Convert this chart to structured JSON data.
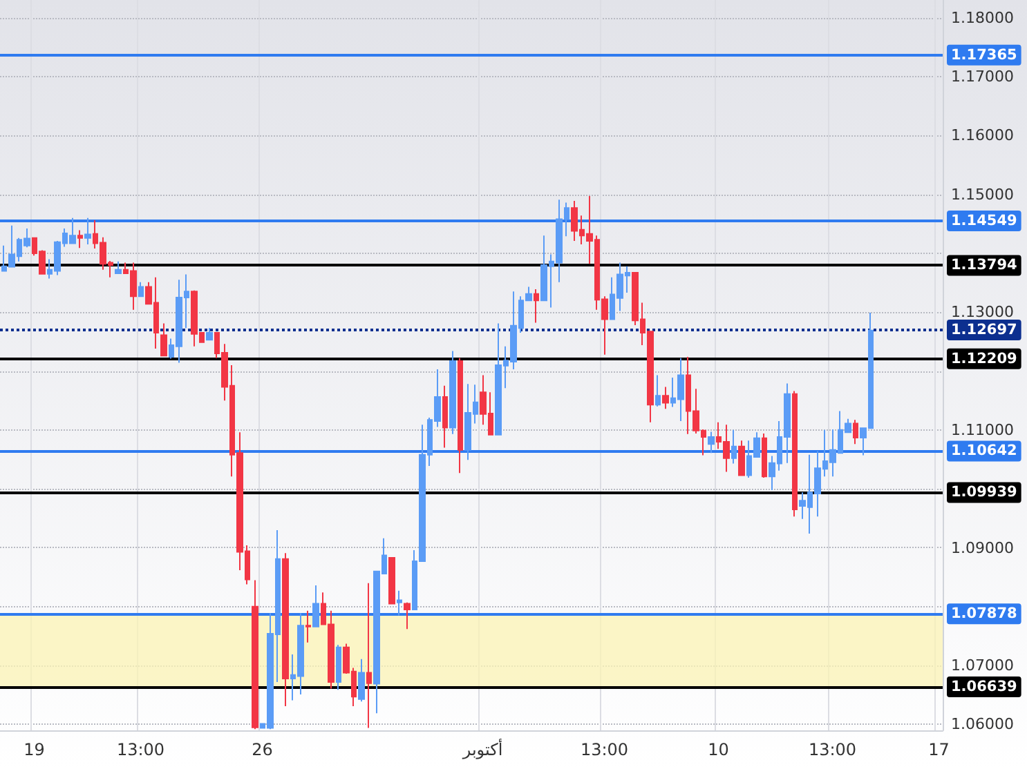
{
  "chart_data": {
    "type": "candlestick",
    "categories": [
      null,
      null,
      null,
      null,
      "19",
      null,
      null,
      null,
      null,
      null,
      null,
      null,
      null,
      null,
      null,
      null,
      null,
      null,
      "13:00",
      null,
      null,
      null,
      null,
      null,
      null,
      null,
      null,
      null,
      null,
      null,
      null,
      null,
      null,
      null,
      "26",
      null,
      null,
      null,
      null,
      null,
      null,
      null,
      null,
      null,
      null,
      null,
      null,
      null,
      null,
      null,
      null,
      null,
      null,
      null,
      null,
      null,
      null,
      null,
      null,
      null,
      null,
      null,
      null,
      "أكتوبر",
      null,
      null,
      null,
      null,
      null,
      null,
      null,
      null,
      null,
      null,
      null,
      null,
      null,
      null,
      null,
      "13:00",
      null,
      null,
      null,
      null,
      null,
      null,
      null,
      null,
      null,
      null,
      null,
      null,
      null,
      null,
      "10",
      null,
      null,
      null,
      null,
      null,
      null,
      null,
      null,
      null,
      null,
      null,
      null,
      null,
      null,
      "13:00",
      null,
      null,
      null,
      null,
      null,
      null,
      null,
      null,
      null,
      null,
      null,
      null,
      null,
      "17"
    ],
    "ohlc": [
      [
        1.137,
        1.1413,
        1.137,
        1.1378
      ],
      [
        1.1377,
        1.1447,
        1.1377,
        1.1398
      ],
      [
        1.1395,
        1.1426,
        1.1386,
        1.1423
      ],
      [
        1.1413,
        1.1442,
        1.141,
        1.1425
      ],
      [
        1.1426,
        1.1427,
        1.1396,
        1.14
      ],
      [
        1.1403,
        1.1405,
        1.1365,
        1.1365
      ],
      [
        1.1365,
        1.139,
        1.1357,
        1.1372
      ],
      [
        1.137,
        1.1421,
        1.1363,
        1.1419
      ],
      [
        1.1417,
        1.1442,
        1.1411,
        1.1434
      ],
      [
        1.1417,
        1.146,
        1.1417,
        1.143
      ],
      [
        1.143,
        1.1439,
        1.1409,
        1.1426
      ],
      [
        1.1426,
        1.146,
        1.1415,
        1.1432
      ],
      [
        1.1433,
        1.1456,
        1.1408,
        1.1417
      ],
      [
        1.1418,
        1.1427,
        1.1372,
        1.1382
      ],
      [
        1.1384,
        1.1387,
        1.1359,
        1.138
      ],
      [
        1.1366,
        1.1386,
        1.1366,
        1.1372
      ],
      [
        1.1372,
        1.1384,
        1.1366,
        1.1366
      ],
      [
        1.137,
        1.1384,
        1.1304,
        1.1327
      ],
      [
        1.1327,
        1.1351,
        1.1327,
        1.1343
      ],
      [
        1.1343,
        1.1351,
        1.1314,
        1.1314
      ],
      [
        1.1316,
        1.1359,
        1.1238,
        1.1265
      ],
      [
        1.1261,
        1.1281,
        1.1226,
        1.1226
      ],
      [
        1.1224,
        1.1255,
        1.1221,
        1.1244
      ],
      [
        1.1242,
        1.1355,
        1.1214,
        1.1325
      ],
      [
        1.1325,
        1.1364,
        1.1273,
        1.1335
      ],
      [
        1.1335,
        1.1337,
        1.1242,
        1.1263
      ],
      [
        1.1265,
        1.1265,
        1.1249,
        1.1249
      ],
      [
        1.1253,
        1.1273,
        1.1252,
        1.1265
      ],
      [
        1.1265,
        1.1265,
        1.1222,
        1.123
      ],
      [
        1.1231,
        1.1246,
        1.115,
        1.1173
      ],
      [
        1.1175,
        1.121,
        1.1021,
        1.1058
      ],
      [
        1.1061,
        1.1096,
        1.0862,
        1.0893
      ],
      [
        1.0894,
        1.0904,
        1.0838,
        1.0846
      ],
      [
        1.08,
        1.0845,
        1.0592,
        1.0595
      ],
      [
        1.0594,
        1.0602,
        1.0594,
        1.0601
      ],
      [
        1.0594,
        1.0789,
        1.0592,
        1.0754
      ],
      [
        1.0753,
        1.093,
        1.0672,
        1.0881
      ],
      [
        1.0881,
        1.0891,
        1.0631,
        1.0678
      ],
      [
        1.0678,
        1.0719,
        1.0641,
        1.0684
      ],
      [
        1.0682,
        1.0789,
        1.0651,
        1.0768
      ],
      [
        1.0768,
        1.0793,
        1.0739,
        1.0766
      ],
      [
        1.0766,
        1.0836,
        1.0766,
        1.0805
      ],
      [
        1.0805,
        1.0824,
        1.077,
        1.077
      ],
      [
        1.077,
        1.0793,
        1.0661,
        1.0672
      ],
      [
        1.0672,
        1.0735,
        1.0659,
        1.0731
      ],
      [
        1.0731,
        1.0737,
        1.0686,
        1.0688
      ],
      [
        1.069,
        1.0696,
        1.0631,
        1.0647
      ],
      [
        1.0643,
        1.0711,
        1.0639,
        1.0688
      ],
      [
        1.0688,
        1.084,
        1.0594,
        1.067
      ],
      [
        1.0669,
        1.086,
        1.0619,
        1.086
      ],
      [
        1.0856,
        1.0916,
        1.0856,
        1.0887
      ],
      [
        1.0883,
        1.0884,
        1.0805,
        1.0805
      ],
      [
        1.0807,
        1.0827,
        1.0785,
        1.0811
      ],
      [
        1.0805,
        1.0807,
        1.0762,
        1.0795
      ],
      [
        1.0795,
        1.0896,
        1.0795,
        1.0877
      ],
      [
        1.0877,
        1.1109,
        1.0877,
        1.1058
      ],
      [
        1.1058,
        1.1121,
        1.1039,
        1.1117
      ],
      [
        1.1115,
        1.1203,
        1.1105,
        1.1156
      ],
      [
        1.1156,
        1.1175,
        1.107,
        1.1104
      ],
      [
        1.1104,
        1.1234,
        1.1093,
        1.1217
      ],
      [
        1.1217,
        1.1222,
        1.1027,
        1.1066
      ],
      [
        1.1066,
        1.1178,
        1.1049,
        1.1129
      ],
      [
        1.1127,
        1.1177,
        1.1111,
        1.1147
      ],
      [
        1.1164,
        1.1193,
        1.1109,
        1.1127
      ],
      [
        1.1128,
        1.1164,
        1.1092,
        1.1092
      ],
      [
        1.1092,
        1.1281,
        1.1092,
        1.121
      ],
      [
        1.1209,
        1.1242,
        1.1171,
        1.1218
      ],
      [
        1.1216,
        1.1335,
        1.1203,
        1.1277
      ],
      [
        1.1273,
        1.1327,
        1.1265,
        1.132
      ],
      [
        1.132,
        1.1343,
        1.132,
        1.1331
      ],
      [
        1.1331,
        1.1339,
        1.1282,
        1.132
      ],
      [
        1.132,
        1.143,
        1.132,
        1.138
      ],
      [
        1.1378,
        1.1398,
        1.1308,
        1.1386
      ],
      [
        1.1384,
        1.1491,
        1.1351,
        1.1458
      ],
      [
        1.1458,
        1.1486,
        1.1429,
        1.1477
      ],
      [
        1.1477,
        1.1489,
        1.1421,
        1.1438
      ],
      [
        1.144,
        1.1464,
        1.1415,
        1.143
      ],
      [
        1.1433,
        1.1497,
        1.1382,
        1.1421
      ],
      [
        1.1423,
        1.143,
        1.1304,
        1.1321
      ],
      [
        1.1322,
        1.1327,
        1.1228,
        1.1288
      ],
      [
        1.1288,
        1.1359,
        1.1288,
        1.133
      ],
      [
        1.1324,
        1.1384,
        1.1302,
        1.1364
      ],
      [
        1.1362,
        1.1378,
        1.1333,
        1.1367
      ],
      [
        1.1367,
        1.1367,
        1.1278,
        1.1286
      ],
      [
        1.1288,
        1.1316,
        1.1244,
        1.1265
      ],
      [
        1.1267,
        1.1267,
        1.1113,
        1.1143
      ],
      [
        1.1143,
        1.1193,
        1.114,
        1.1158
      ],
      [
        1.1158,
        1.1173,
        1.1136,
        1.1146
      ],
      [
        1.1146,
        1.1189,
        1.1139,
        1.1154
      ],
      [
        1.1152,
        1.1222,
        1.1115,
        1.1193
      ],
      [
        1.1193,
        1.1224,
        1.1093,
        1.1132
      ],
      [
        1.1132,
        1.117,
        1.1094,
        1.1099
      ],
      [
        1.1099,
        1.1101,
        1.1057,
        1.1088
      ],
      [
        1.1076,
        1.1097,
        1.1061,
        1.1088
      ],
      [
        1.1088,
        1.1113,
        1.1068,
        1.108
      ],
      [
        1.108,
        1.1109,
        1.1029,
        1.1052
      ],
      [
        1.1052,
        1.11,
        1.1043,
        1.1072
      ],
      [
        1.1072,
        1.1082,
        1.1023,
        1.1023
      ],
      [
        1.1023,
        1.1082,
        1.1019,
        1.1056
      ],
      [
        1.1054,
        1.1096,
        1.1054,
        1.1086
      ],
      [
        1.1086,
        1.1094,
        1.1019,
        1.1021
      ],
      [
        1.1021,
        1.1056,
        1.0998,
        1.1044
      ],
      [
        1.1043,
        1.1115,
        1.1031,
        1.1088
      ],
      [
        1.1088,
        1.1179,
        1.1044,
        1.1161
      ],
      [
        1.1161,
        1.1166,
        1.0953,
        1.0965
      ],
      [
        1.0971,
        1.0994,
        1.0949,
        1.098
      ],
      [
        1.0969,
        1.1058,
        1.0924,
        1.0994
      ],
      [
        1.0992,
        1.1064,
        1.0953,
        1.1035
      ],
      [
        1.1034,
        1.11,
        1.1021,
        1.1047
      ],
      [
        1.1045,
        1.1101,
        1.1021,
        1.1066
      ],
      [
        1.1061,
        1.1132,
        1.1061,
        1.11
      ],
      [
        1.1096,
        1.1119,
        1.1096,
        1.1111
      ],
      [
        1.1111,
        1.1117,
        1.1076,
        1.1087
      ],
      [
        1.1087,
        1.1103,
        1.1057,
        1.1103
      ],
      [
        1.1103,
        1.1299,
        1.1103,
        1.1269
      ],
      null,
      null,
      null,
      null,
      null,
      null,
      null,
      null,
      null
    ],
    "ylim": [
      1.059,
      1.183
    ],
    "yticks": [
      {
        "value": 1.06,
        "label": "1.06000"
      },
      {
        "value": 1.07,
        "label": "1.07000"
      },
      {
        "value": 1.08,
        "label": null
      },
      {
        "value": 1.09,
        "label": "1.09000"
      },
      {
        "value": 1.1,
        "label": null
      },
      {
        "value": 1.11,
        "label": "1.11000"
      },
      {
        "value": 1.12,
        "label": null
      },
      {
        "value": 1.13,
        "label": "1.13000"
      },
      {
        "value": 1.14,
        "label": null
      },
      {
        "value": 1.15,
        "label": "1.15000"
      },
      {
        "value": 1.16,
        "label": "1.16000"
      },
      {
        "value": 1.17,
        "label": "1.17000"
      },
      {
        "value": 1.18,
        "label": "1.18000"
      }
    ],
    "ref_lines": [
      {
        "axis": "y",
        "value": 1.17365,
        "label": "1.17365",
        "color": "#2f7bf0",
        "line_style": "solid"
      },
      {
        "axis": "y",
        "value": 1.14549,
        "label": "1.14549",
        "color": "#2f7bf0",
        "line_style": "solid"
      },
      {
        "axis": "y",
        "value": 1.13794,
        "label": "1.13794",
        "color": "#000000",
        "line_style": "solid"
      },
      {
        "axis": "y",
        "value": 1.12697,
        "label": "1.12697",
        "color": "#0c2f8f",
        "line_style": "dotted"
      },
      {
        "axis": "y",
        "value": 1.12209,
        "label": "1.12209",
        "color": "#000000",
        "line_style": "solid"
      },
      {
        "axis": "y",
        "value": 1.10642,
        "label": "1.10642",
        "color": "#2f7bf0",
        "line_style": "solid"
      },
      {
        "axis": "y",
        "value": 1.09939,
        "label": "1.09939",
        "color": "#000000",
        "line_style": "solid"
      },
      {
        "axis": "y",
        "value": 1.07878,
        "label": "1.07878",
        "color": "#2f7bf0",
        "line_style": "solid"
      },
      {
        "axis": "y",
        "value": 1.06639,
        "label": "1.06639",
        "color": "#000000",
        "line_style": "solid"
      }
    ],
    "bands": [
      {
        "axis": "y",
        "from": 1.06639,
        "to": 1.07878,
        "color": "#fbf3b4"
      }
    ],
    "grid": true
  }
}
